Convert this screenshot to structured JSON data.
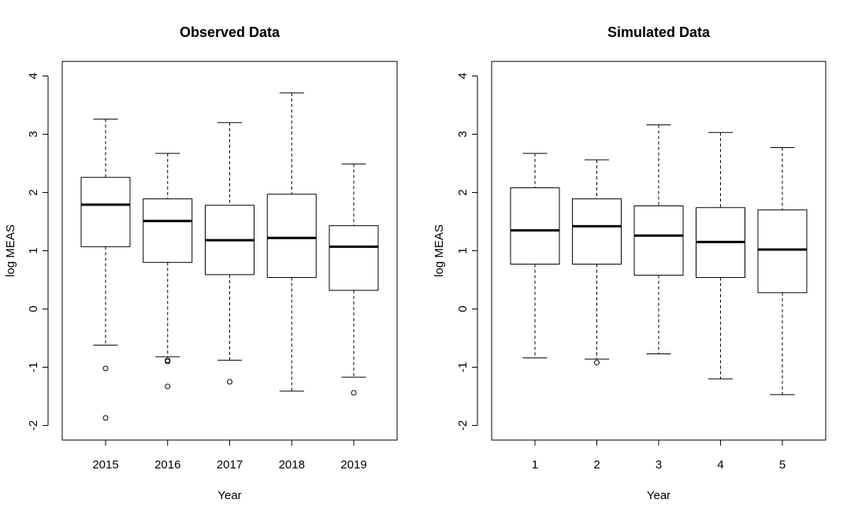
{
  "chart_data": [
    {
      "type": "boxplot",
      "title": "Observed Data",
      "xlabel": "Year",
      "ylabel": "log MEAS",
      "ylim": [
        -2.25,
        4.25
      ],
      "yticks": [
        -2,
        -1,
        0,
        1,
        2,
        3,
        4
      ],
      "categories": [
        "2015",
        "2016",
        "2017",
        "2018",
        "2019"
      ],
      "boxes": [
        {
          "whisker_low": -0.62,
          "q1": 1.07,
          "median": 1.79,
          "q3": 2.26,
          "whisker_high": 3.26,
          "outliers": [
            -1.02,
            -1.87
          ]
        },
        {
          "whisker_low": -0.82,
          "q1": 0.8,
          "median": 1.51,
          "q3": 1.89,
          "whisker_high": 2.67,
          "outliers": [
            -0.88,
            -0.9,
            -1.33
          ]
        },
        {
          "whisker_low": -0.88,
          "q1": 0.59,
          "median": 1.18,
          "q3": 1.78,
          "whisker_high": 3.2,
          "outliers": [
            -1.25
          ]
        },
        {
          "whisker_low": -1.41,
          "q1": 0.54,
          "median": 1.22,
          "q3": 1.97,
          "whisker_high": 3.71,
          "outliers": []
        },
        {
          "whisker_low": -1.17,
          "q1": 0.32,
          "median": 1.07,
          "q3": 1.43,
          "whisker_high": 2.49,
          "outliers": [
            -1.44
          ]
        }
      ]
    },
    {
      "type": "boxplot",
      "title": "Simulated Data",
      "xlabel": "Year",
      "ylabel": "log MEAS",
      "ylim": [
        -2.25,
        4.25
      ],
      "yticks": [
        -2,
        -1,
        0,
        1,
        2,
        3,
        4
      ],
      "categories": [
        "1",
        "2",
        "3",
        "4",
        "5"
      ],
      "boxes": [
        {
          "whisker_low": -0.84,
          "q1": 0.77,
          "median": 1.35,
          "q3": 2.08,
          "whisker_high": 2.67,
          "outliers": []
        },
        {
          "whisker_low": -0.86,
          "q1": 0.77,
          "median": 1.42,
          "q3": 1.89,
          "whisker_high": 2.56,
          "outliers": [
            -0.92
          ]
        },
        {
          "whisker_low": -0.77,
          "q1": 0.58,
          "median": 1.26,
          "q3": 1.77,
          "whisker_high": 3.16,
          "outliers": []
        },
        {
          "whisker_low": -1.2,
          "q1": 0.54,
          "median": 1.15,
          "q3": 1.74,
          "whisker_high": 3.03,
          "outliers": []
        },
        {
          "whisker_low": -1.47,
          "q1": 0.28,
          "median": 1.02,
          "q3": 1.7,
          "whisker_high": 2.77,
          "outliers": []
        }
      ]
    }
  ]
}
